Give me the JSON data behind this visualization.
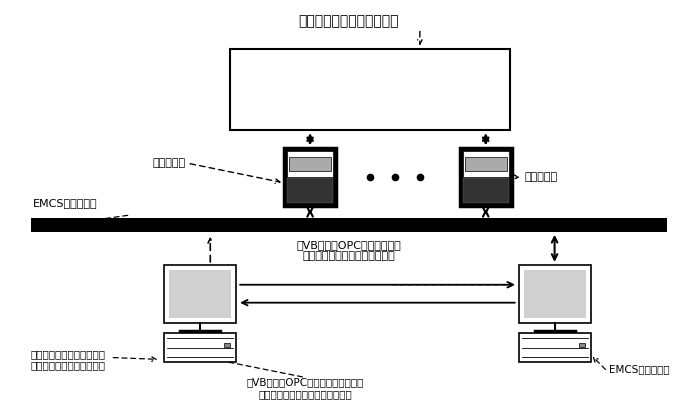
{
  "title": "变风量空调系统的控制过程",
  "bg_color": "#ffffff",
  "label_field_controller_left": "现场控制器",
  "label_field_controller_right": "现场控制器",
  "label_emcs_network": "EMCS的通信网络",
  "label_vb_opc_send": "用VB语言和OPC客户端向中央\n处理器发送主动式诊断控制信号",
  "label_computer_left": "安装变风量空气处理机组主\n动式故障诊断方法的计算机",
  "label_vb_opc_recv": "用VB语言和OPC客户端从中央处理器\n获取变风量空调系统实时运行数据",
  "label_emcs_cpu": "EMCS中央处理器",
  "text_color": "#000000"
}
